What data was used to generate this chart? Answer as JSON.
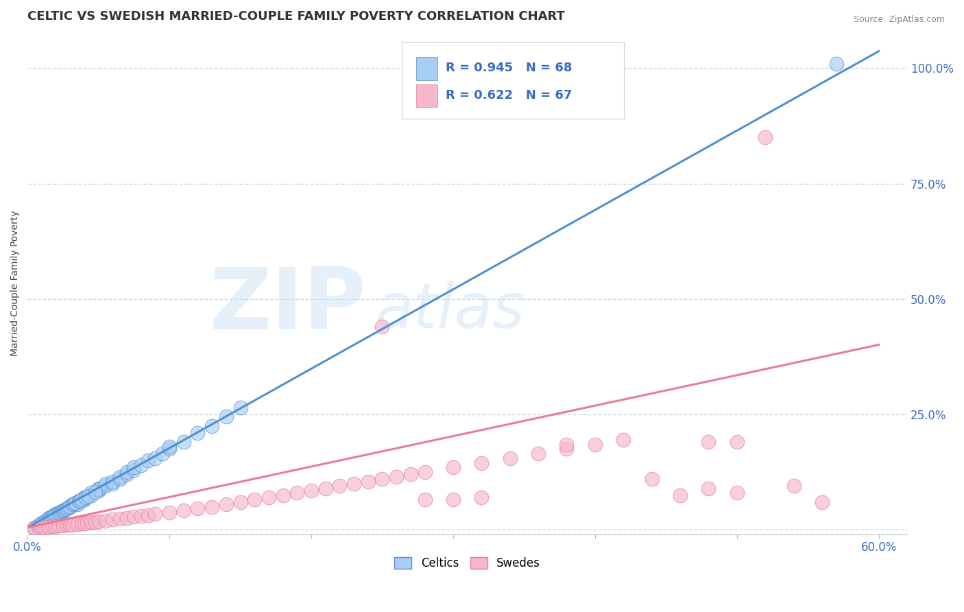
{
  "title": "CELTIC VS SWEDISH MARRIED-COUPLE FAMILY POVERTY CORRELATION CHART",
  "source_text": "Source: ZipAtlas.com",
  "ylabel": "Married-Couple Family Poverty",
  "xlim": [
    0.0,
    0.62
  ],
  "ylim": [
    -0.01,
    1.08
  ],
  "xticks": [
    0.0,
    0.6
  ],
  "xticklabels": [
    "0.0%",
    "60.0%"
  ],
  "yticks_right": [
    0.25,
    0.5,
    0.75,
    1.0
  ],
  "yticklabels_right": [
    "25.0%",
    "50.0%",
    "75.0%",
    "100.0%"
  ],
  "celtic_R": 0.945,
  "celtic_N": 68,
  "swedish_R": 0.622,
  "swedish_N": 67,
  "celtic_color": "#a8cef5",
  "swedish_color": "#f5b8cc",
  "celtic_line_color": "#5090d0",
  "swedish_line_color": "#e87a9a",
  "background_color": "#ffffff",
  "grid_color": "#c8d8ec",
  "title_fontsize": 13,
  "label_fontsize": 10,
  "tick_fontsize": 12,
  "legend_R_color": "#3a6bc4",
  "celtic_slope": 1.72,
  "celtic_intercept": 0.005,
  "swedish_slope": 0.66,
  "swedish_intercept": 0.005,
  "celtic_scatter": {
    "x": [
      0.02,
      0.025,
      0.03,
      0.035,
      0.035,
      0.04,
      0.04,
      0.04,
      0.045,
      0.045,
      0.05,
      0.05,
      0.05,
      0.055,
      0.055,
      0.06,
      0.06,
      0.065,
      0.065,
      0.07,
      0.07,
      0.075,
      0.075,
      0.08,
      0.085,
      0.09,
      0.095,
      0.1,
      0.1,
      0.11,
      0.12,
      0.13,
      0.14,
      0.15,
      0.005,
      0.007,
      0.008,
      0.009,
      0.01,
      0.012,
      0.013,
      0.015,
      0.015,
      0.016,
      0.017,
      0.018,
      0.019,
      0.02,
      0.021,
      0.022,
      0.023,
      0.024,
      0.025,
      0.026,
      0.027,
      0.028,
      0.029,
      0.03,
      0.032,
      0.033,
      0.034,
      0.036,
      0.037,
      0.038,
      0.041,
      0.043,
      0.048,
      0.57
    ],
    "y": [
      0.035,
      0.04,
      0.05,
      0.06,
      0.055,
      0.065,
      0.07,
      0.068,
      0.075,
      0.08,
      0.085,
      0.09,
      0.088,
      0.095,
      0.1,
      0.1,
      0.105,
      0.11,
      0.115,
      0.12,
      0.125,
      0.13,
      0.135,
      0.14,
      0.15,
      0.155,
      0.165,
      0.175,
      0.18,
      0.19,
      0.21,
      0.225,
      0.245,
      0.265,
      0.005,
      0.008,
      0.01,
      0.012,
      0.015,
      0.018,
      0.02,
      0.023,
      0.025,
      0.025,
      0.028,
      0.03,
      0.032,
      0.033,
      0.035,
      0.037,
      0.038,
      0.04,
      0.042,
      0.043,
      0.045,
      0.047,
      0.05,
      0.051,
      0.055,
      0.057,
      0.058,
      0.062,
      0.063,
      0.065,
      0.07,
      0.073,
      0.082,
      1.01
    ]
  },
  "swedish_scatter": {
    "x": [
      0.005,
      0.008,
      0.01,
      0.012,
      0.015,
      0.018,
      0.02,
      0.022,
      0.025,
      0.028,
      0.03,
      0.032,
      0.035,
      0.038,
      0.04,
      0.042,
      0.045,
      0.048,
      0.05,
      0.055,
      0.06,
      0.065,
      0.07,
      0.075,
      0.08,
      0.085,
      0.09,
      0.1,
      0.11,
      0.12,
      0.13,
      0.14,
      0.15,
      0.16,
      0.17,
      0.18,
      0.19,
      0.2,
      0.21,
      0.22,
      0.23,
      0.24,
      0.25,
      0.26,
      0.27,
      0.28,
      0.3,
      0.32,
      0.34,
      0.36,
      0.38,
      0.4,
      0.42,
      0.44,
      0.46,
      0.48,
      0.5,
      0.25,
      0.38,
      0.48,
      0.5,
      0.52,
      0.54,
      0.56,
      0.28,
      0.3,
      0.32
    ],
    "y": [
      0.003,
      0.004,
      0.005,
      0.005,
      0.006,
      0.007,
      0.008,
      0.009,
      0.009,
      0.01,
      0.01,
      0.011,
      0.012,
      0.013,
      0.014,
      0.015,
      0.016,
      0.017,
      0.018,
      0.02,
      0.022,
      0.024,
      0.026,
      0.028,
      0.03,
      0.032,
      0.034,
      0.038,
      0.042,
      0.046,
      0.05,
      0.055,
      0.06,
      0.065,
      0.07,
      0.075,
      0.08,
      0.085,
      0.09,
      0.095,
      0.1,
      0.105,
      0.11,
      0.115,
      0.12,
      0.125,
      0.135,
      0.145,
      0.155,
      0.165,
      0.175,
      0.185,
      0.195,
      0.11,
      0.075,
      0.09,
      0.08,
      0.44,
      0.185,
      0.19,
      0.19,
      0.85,
      0.095,
      0.06,
      0.065,
      0.065,
      0.07
    ]
  }
}
